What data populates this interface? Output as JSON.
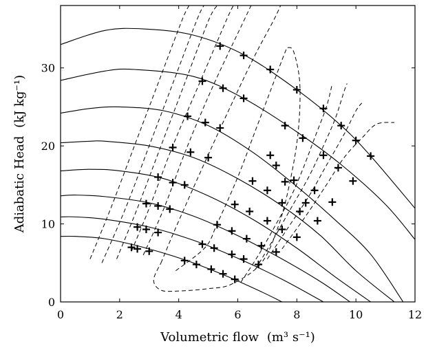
{
  "chart_data": {
    "type": "line",
    "xlabel": "Volumetric flow",
    "xlabel_unit": "(m³ s⁻¹)",
    "ylabel": "Adiabatic Head",
    "ylabel_unit": "(kJ kg⁻¹)",
    "xlim": [
      0,
      12
    ],
    "ylim": [
      0,
      38
    ],
    "xticks": [
      "0",
      "2",
      "4",
      "6",
      "8",
      "10",
      "12"
    ],
    "yticks": [
      "0",
      "10",
      "20",
      "30"
    ],
    "xtick_values": [
      0,
      2,
      4,
      6,
      8,
      10,
      12
    ],
    "ytick_values": [
      0,
      10,
      20,
      30
    ],
    "grid": false,
    "legend": "none",
    "colors": {
      "line": "#000000",
      "background": "#ffffff"
    },
    "series": [
      {
        "style": "solid",
        "points": [
          [
            0,
            33.0
          ],
          [
            1.5,
            34.8
          ],
          [
            2.8,
            35.0
          ],
          [
            4.5,
            34.2
          ],
          [
            6.2,
            31.7
          ],
          [
            8.0,
            27.2
          ],
          [
            9.5,
            22.6
          ],
          [
            10.5,
            18.7
          ],
          [
            12.0,
            12.0
          ]
        ]
      },
      {
        "style": "solid",
        "points": [
          [
            0,
            28.4
          ],
          [
            1.5,
            29.6
          ],
          [
            2.5,
            29.8
          ],
          [
            4.5,
            28.9
          ],
          [
            6.2,
            26.1
          ],
          [
            8.0,
            21.8
          ],
          [
            9.5,
            17.6
          ],
          [
            11.0,
            12.5
          ],
          [
            12.0,
            8.0
          ]
        ]
      },
      {
        "style": "solid",
        "points": [
          [
            0,
            24.2
          ],
          [
            1.0,
            24.8
          ],
          [
            2.0,
            25.0
          ],
          [
            3.5,
            24.5
          ],
          [
            5.0,
            22.6
          ],
          [
            6.5,
            19.2
          ],
          [
            8.0,
            14.8
          ],
          [
            9.3,
            10.5
          ],
          [
            10.5,
            6.1
          ],
          [
            11.6,
            0.0
          ]
        ]
      },
      {
        "style": "solid",
        "points": [
          [
            0,
            20.4
          ],
          [
            1.0,
            20.6
          ],
          [
            1.5,
            20.6
          ],
          [
            3.0,
            20.0
          ],
          [
            4.5,
            18.5
          ],
          [
            6.0,
            15.8
          ],
          [
            7.5,
            12.3
          ],
          [
            8.8,
            8.5
          ],
          [
            10.0,
            4.0
          ],
          [
            11.3,
            0.0
          ]
        ]
      },
      {
        "style": "solid",
        "points": [
          [
            0,
            16.8
          ],
          [
            1.0,
            17.0
          ],
          [
            2.0,
            16.8
          ],
          [
            3.5,
            15.8
          ],
          [
            5.0,
            13.6
          ],
          [
            6.5,
            10.6
          ],
          [
            8.0,
            6.9
          ],
          [
            9.3,
            3.2
          ],
          [
            10.5,
            0.0
          ]
        ]
      },
      {
        "style": "solid",
        "points": [
          [
            0,
            13.6
          ],
          [
            0.5,
            13.7
          ],
          [
            1.5,
            13.5
          ],
          [
            3.0,
            12.7
          ],
          [
            4.5,
            11.0
          ],
          [
            6.0,
            8.5
          ],
          [
            7.5,
            5.5
          ],
          [
            8.8,
            2.6
          ],
          [
            9.8,
            0.0
          ]
        ]
      },
      {
        "style": "solid",
        "points": [
          [
            0,
            10.9
          ],
          [
            0.5,
            10.9
          ],
          [
            1.5,
            10.6
          ],
          [
            3.0,
            9.6
          ],
          [
            4.5,
            7.9
          ],
          [
            6.0,
            5.6
          ],
          [
            7.5,
            2.9
          ],
          [
            8.9,
            0.0
          ]
        ]
      },
      {
        "style": "solid",
        "points": [
          [
            0,
            8.4
          ],
          [
            0.5,
            8.4
          ],
          [
            1.5,
            8.1
          ],
          [
            2.8,
            7.0
          ],
          [
            4.2,
            5.4
          ],
          [
            5.5,
            3.5
          ],
          [
            6.8,
            1.3
          ],
          [
            7.5,
            0.0
          ]
        ]
      },
      {
        "style": "dashed",
        "points": [
          [
            1.0,
            5.5
          ],
          [
            1.7,
            12.0
          ],
          [
            2.5,
            20.0
          ],
          [
            3.3,
            28.0
          ],
          [
            4.1,
            36.0
          ],
          [
            4.35,
            38.0
          ]
        ]
      },
      {
        "style": "dashed",
        "points": [
          [
            1.4,
            5.0
          ],
          [
            2.2,
            12.0
          ],
          [
            3.0,
            20.0
          ],
          [
            3.8,
            28.0
          ],
          [
            4.6,
            36.0
          ],
          [
            4.85,
            38.0
          ]
        ]
      },
      {
        "style": "dashed",
        "points": [
          [
            1.9,
            5.5
          ],
          [
            2.6,
            12.0
          ],
          [
            3.4,
            20.0
          ],
          [
            4.2,
            28.0
          ],
          [
            5.0,
            36.0
          ],
          [
            5.3,
            38.0
          ]
        ]
      },
      {
        "style": "dashed",
        "points": [
          [
            2.4,
            6.5
          ],
          [
            3.0,
            12.0
          ],
          [
            3.8,
            20.0
          ],
          [
            4.7,
            28.0
          ],
          [
            5.6,
            36.0
          ],
          [
            5.85,
            38.0
          ]
        ]
      },
      {
        "style": "dashed",
        "points": [
          [
            2.8,
            6.0
          ],
          [
            3.5,
            12.0
          ],
          [
            4.3,
            20.0
          ],
          [
            5.2,
            28.0
          ],
          [
            6.2,
            36.0
          ],
          [
            6.45,
            38.0
          ]
        ]
      },
      {
        "style": "dashed",
        "points": [
          [
            3.4,
            5.0
          ],
          [
            3.9,
            9.5
          ],
          [
            4.6,
            15.5
          ],
          [
            5.5,
            23.0
          ],
          [
            6.5,
            31.0
          ],
          [
            7.2,
            36.0
          ],
          [
            7.45,
            38.0
          ]
        ]
      },
      {
        "style": "dashed",
        "points": [
          [
            3.9,
            4.0
          ],
          [
            4.9,
            7.0
          ],
          [
            5.3,
            10.0
          ],
          [
            6.0,
            16.0
          ],
          [
            6.6,
            22.0
          ],
          [
            7.2,
            28.0
          ],
          [
            7.6,
            32.0
          ],
          [
            7.7,
            32.6
          ],
          [
            7.9,
            32.0
          ],
          [
            8.1,
            28.0
          ],
          [
            8.05,
            22.0
          ],
          [
            7.8,
            16.0
          ],
          [
            7.4,
            10.0
          ],
          [
            6.8,
            5.0
          ],
          [
            5.8,
            2.3
          ],
          [
            5.0,
            1.7
          ],
          [
            4.0,
            1.4
          ],
          [
            3.4,
            1.5
          ],
          [
            3.15,
            2.8
          ],
          [
            3.4,
            5.0
          ]
        ]
      },
      {
        "style": "dashed",
        "points": [
          [
            6.1,
            2.5
          ],
          [
            6.7,
            6.0
          ],
          [
            7.3,
            10.0
          ],
          [
            7.8,
            13.5
          ],
          [
            8.2,
            17.0
          ],
          [
            8.6,
            21.0
          ],
          [
            9.0,
            25.0
          ],
          [
            9.2,
            28.0
          ]
        ]
      },
      {
        "style": "dashed",
        "points": [
          [
            6.6,
            4.2
          ],
          [
            7.2,
            8.0
          ],
          [
            7.8,
            12.0
          ],
          [
            8.4,
            16.0
          ],
          [
            8.9,
            20.0
          ],
          [
            9.3,
            23.5
          ],
          [
            9.6,
            27.0
          ],
          [
            9.7,
            28.0
          ]
        ]
      },
      {
        "style": "dashed",
        "points": [
          [
            7.0,
            5.5
          ],
          [
            7.7,
            9.5
          ],
          [
            8.4,
            13.5
          ],
          [
            9.0,
            17.5
          ],
          [
            9.6,
            21.5
          ],
          [
            10.0,
            24.5
          ],
          [
            10.2,
            25.5
          ]
        ]
      },
      {
        "style": "dashed",
        "points": [
          [
            7.5,
            6.8
          ],
          [
            8.3,
            11.0
          ],
          [
            9.0,
            15.0
          ],
          [
            9.6,
            18.5
          ],
          [
            10.2,
            21.0
          ],
          [
            10.7,
            22.8
          ],
          [
            11.3,
            23.0
          ]
        ]
      }
    ],
    "markers": [
      [
        5.4,
        32.8
      ],
      [
        6.2,
        31.6
      ],
      [
        7.1,
        29.8
      ],
      [
        8.0,
        27.2
      ],
      [
        8.9,
        24.8
      ],
      [
        9.5,
        22.6
      ],
      [
        10.0,
        20.7
      ],
      [
        10.5,
        18.7
      ],
      [
        4.8,
        28.3
      ],
      [
        5.5,
        27.4
      ],
      [
        6.2,
        26.1
      ],
      [
        7.1,
        18.8
      ],
      [
        7.6,
        15.4
      ],
      [
        8.3,
        12.7
      ],
      [
        9.2,
        12.8
      ],
      [
        9.9,
        15.5
      ],
      [
        4.3,
        23.8
      ],
      [
        4.9,
        23.0
      ],
      [
        5.4,
        22.3
      ],
      [
        7.6,
        22.6
      ],
      [
        8.2,
        21.0
      ],
      [
        8.9,
        18.8
      ],
      [
        9.4,
        17.2
      ],
      [
        3.8,
        19.8
      ],
      [
        4.4,
        19.2
      ],
      [
        5.0,
        18.5
      ],
      [
        7.3,
        17.5
      ],
      [
        7.9,
        15.6
      ],
      [
        8.6,
        14.3
      ],
      [
        3.3,
        16.0
      ],
      [
        3.8,
        15.3
      ],
      [
        4.2,
        15.0
      ],
      [
        6.5,
        15.5
      ],
      [
        7.0,
        14.3
      ],
      [
        7.5,
        12.7
      ],
      [
        8.1,
        11.6
      ],
      [
        8.7,
        10.4
      ],
      [
        2.9,
        12.6
      ],
      [
        3.3,
        12.3
      ],
      [
        3.7,
        11.9
      ],
      [
        5.9,
        12.5
      ],
      [
        6.4,
        11.6
      ],
      [
        7.0,
        10.4
      ],
      [
        7.5,
        9.3
      ],
      [
        8.0,
        8.3
      ],
      [
        2.6,
        9.6
      ],
      [
        2.9,
        9.3
      ],
      [
        3.3,
        8.9
      ],
      [
        5.3,
        9.9
      ],
      [
        5.8,
        9.1
      ],
      [
        6.3,
        8.1
      ],
      [
        6.8,
        7.2
      ],
      [
        7.3,
        6.4
      ],
      [
        2.4,
        7.0
      ],
      [
        2.6,
        6.8
      ],
      [
        3.0,
        6.5
      ],
      [
        4.2,
        5.3
      ],
      [
        4.6,
        4.8
      ],
      [
        5.1,
        4.2
      ],
      [
        5.5,
        3.6
      ],
      [
        5.9,
        2.9
      ],
      [
        4.8,
        7.4
      ],
      [
        5.2,
        6.9
      ],
      [
        5.8,
        6.1
      ],
      [
        6.2,
        5.5
      ],
      [
        6.7,
        4.8
      ]
    ]
  }
}
